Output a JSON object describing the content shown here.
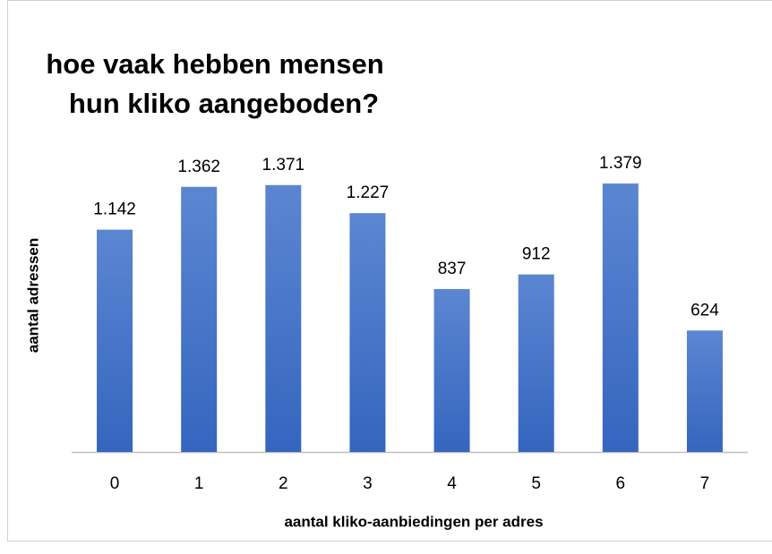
{
  "chart_data": {
    "type": "bar",
    "title": [
      "hoe vaak hebben mensen",
      "hun kliko aangeboden?"
    ],
    "x_label": "aantal kliko-aanbiedingen per adres",
    "y_label": "aantal adressen",
    "categories": [
      "0",
      "1",
      "2",
      "3",
      "4",
      "5",
      "6",
      "7"
    ],
    "values": [
      1142,
      1362,
      1371,
      1227,
      837,
      912,
      1379,
      624
    ],
    "value_labels": [
      "1.142",
      "1.362",
      "1.371",
      "1.227",
      "837",
      "912",
      "1.379",
      "624"
    ],
    "color": "#4472c4",
    "ylim": [
      0,
      1600
    ]
  }
}
